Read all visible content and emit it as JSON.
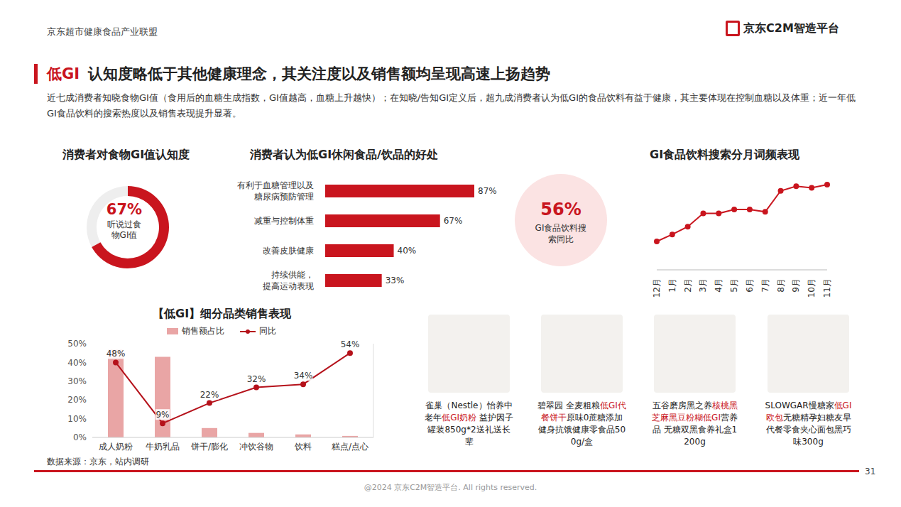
{
  "header": {
    "organization": "京东超市健康食品产业联盟",
    "logo": "京东C2M智造平台",
    "title_tag": "低GI",
    "title": "认知度略低于其他健康理念，其关注度以及销售额均呈现高速上扬趋势",
    "subtitle": "近七成消费者知晓食物GI值（食用后的血糖生成指数，GI值越高，血糖上升越快）；在知晓/告知GI定义后，超九成消费者认为低GI的食品饮料有益于健康，其主要体现在控制血糖以及体重；近一年低GI食品饮料的搜索热度以及销售表现提升显著。"
  },
  "chart_data": [
    {
      "type": "pie",
      "title": "消费者对食物GI值认知度",
      "categories": [
        "听说过食物GI值"
      ],
      "values": [
        67
      ],
      "value_labels": [
        "67%"
      ],
      "color": "#c9151e",
      "data_labels": true
    },
    {
      "type": "bar",
      "title": "消费者认为低GI休闲食品/饮品的好处",
      "orientation": "horizontal",
      "categories": [
        "有利于血糖管理以及糖尿病预防管理",
        "减重与控制体重",
        "改善皮肤健康",
        "持续供能，提高运动表现"
      ],
      "values": [
        87,
        67,
        40,
        33
      ],
      "value_labels": [
        "87%",
        "67%",
        "40%",
        "33%"
      ],
      "color": "#c9151e",
      "data_labels": true,
      "tick_labels": "y"
    },
    {
      "type": "line",
      "title": "GI食品饮料搜索分月词频表现",
      "categories": [
        "12月",
        "1月",
        "2月",
        "3月",
        "4月",
        "5月",
        "6月",
        "7月",
        "8月",
        "9月",
        "10月",
        "11月"
      ],
      "values": [
        13,
        22,
        32,
        49,
        49,
        54,
        54,
        51,
        78,
        84,
        82,
        86
      ],
      "color": "#c9151e",
      "marker": "circle",
      "tick_labels": "x"
    },
    {
      "type": "combo",
      "title": "【低GI】细分品类销售表现",
      "categories": [
        "成人奶粉",
        "牛奶乳品",
        "饼干/膨化",
        "冲饮谷物",
        "饮料",
        "糕点/点心"
      ],
      "series": [
        {
          "name": "销售额占比",
          "type": "bar",
          "color": "#e9a5a5",
          "values": [
            47,
            43,
            5,
            2.4,
            1.6,
            0.8
          ]
        },
        {
          "name": "同比",
          "type": "line",
          "axis": "y2",
          "color": "#b5121b",
          "marker": "circle",
          "data_labels": true,
          "values": [
            48,
            9,
            22,
            32,
            34,
            54
          ],
          "value_labels": [
            "48%",
            "9%",
            "22%",
            "32%",
            "34%",
            "54%"
          ]
        }
      ],
      "ylim": [
        0,
        50
      ],
      "yticks": [
        {
          "value": 0,
          "label": "0%"
        },
        {
          "value": 10,
          "label": "10%"
        },
        {
          "value": 20,
          "label": "20%"
        },
        {
          "value": 30,
          "label": "30%"
        },
        {
          "value": 40,
          "label": "40%"
        },
        {
          "value": 50,
          "label": "50%"
        }
      ],
      "y2lim": [
        0,
        60
      ],
      "legend": "top"
    }
  ],
  "callout": {
    "value": 56,
    "value_label": "56%",
    "label": "GI食品饮料搜索同比"
  },
  "products": [
    {
      "caption": "雀巢（Nestle）怡养中老年低GI奶粉 益护因子罐装850g*2送礼送长辈",
      "highlight": "低GI奶粉"
    },
    {
      "caption": "碧翠园 全麦粗粮低GI代餐饼干原味0蔗糖添加健身抗饿健康零食品500g/盒",
      "highlight": "低GI代餐饼干"
    },
    {
      "caption": "五谷磨房黑之养核桃黑芝麻黑豆粉糊低GI营养品 无糖双黑食养礼盒1200g",
      "highlight": "核桃黑芝麻黑豆粉糊低GI"
    },
    {
      "caption": "SLOWGAR慢糖家低GI欧包无糖精孕妇糖友早代餐零食夹心面包黑巧味300g",
      "highlight": "低GI欧包"
    }
  ],
  "source": "数据来源：京东，站内调研",
  "footer": {
    "copyright": "@2024 京东C2M智造平台. All rights reserved.",
    "page": 31
  }
}
